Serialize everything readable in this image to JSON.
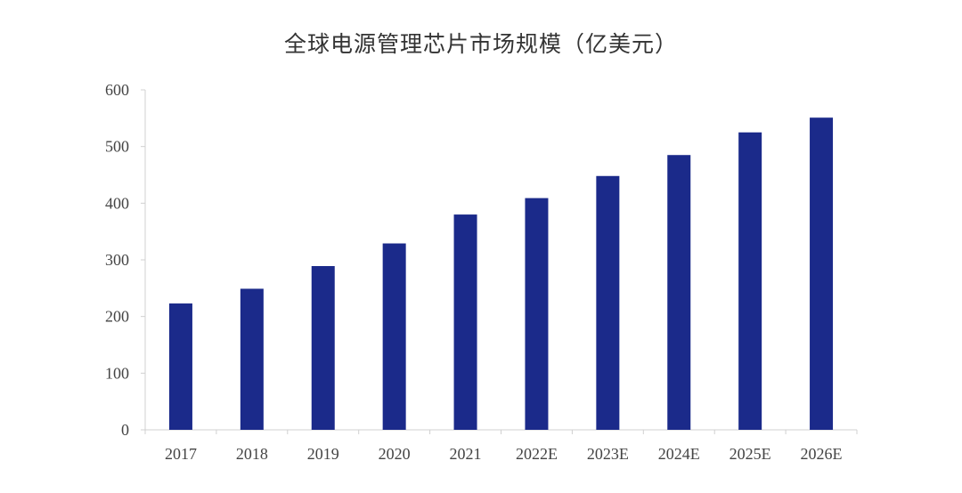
{
  "chart_data": {
    "type": "bar",
    "title": "全球电源管理芯片市场规模（亿美元）",
    "xlabel": "",
    "ylabel": "",
    "categories": [
      "2017",
      "2018",
      "2019",
      "2020",
      "2021",
      "2022E",
      "2023E",
      "2024E",
      "2025E",
      "2026E"
    ],
    "values": [
      223,
      249,
      289,
      329,
      380,
      409,
      448,
      485,
      525,
      551
    ],
    "ylim": [
      0,
      600
    ],
    "yticks": [
      0,
      100,
      200,
      300,
      400,
      500,
      600
    ],
    "bar_color": "#1b2a8a",
    "grid": false,
    "legend": "none"
  }
}
